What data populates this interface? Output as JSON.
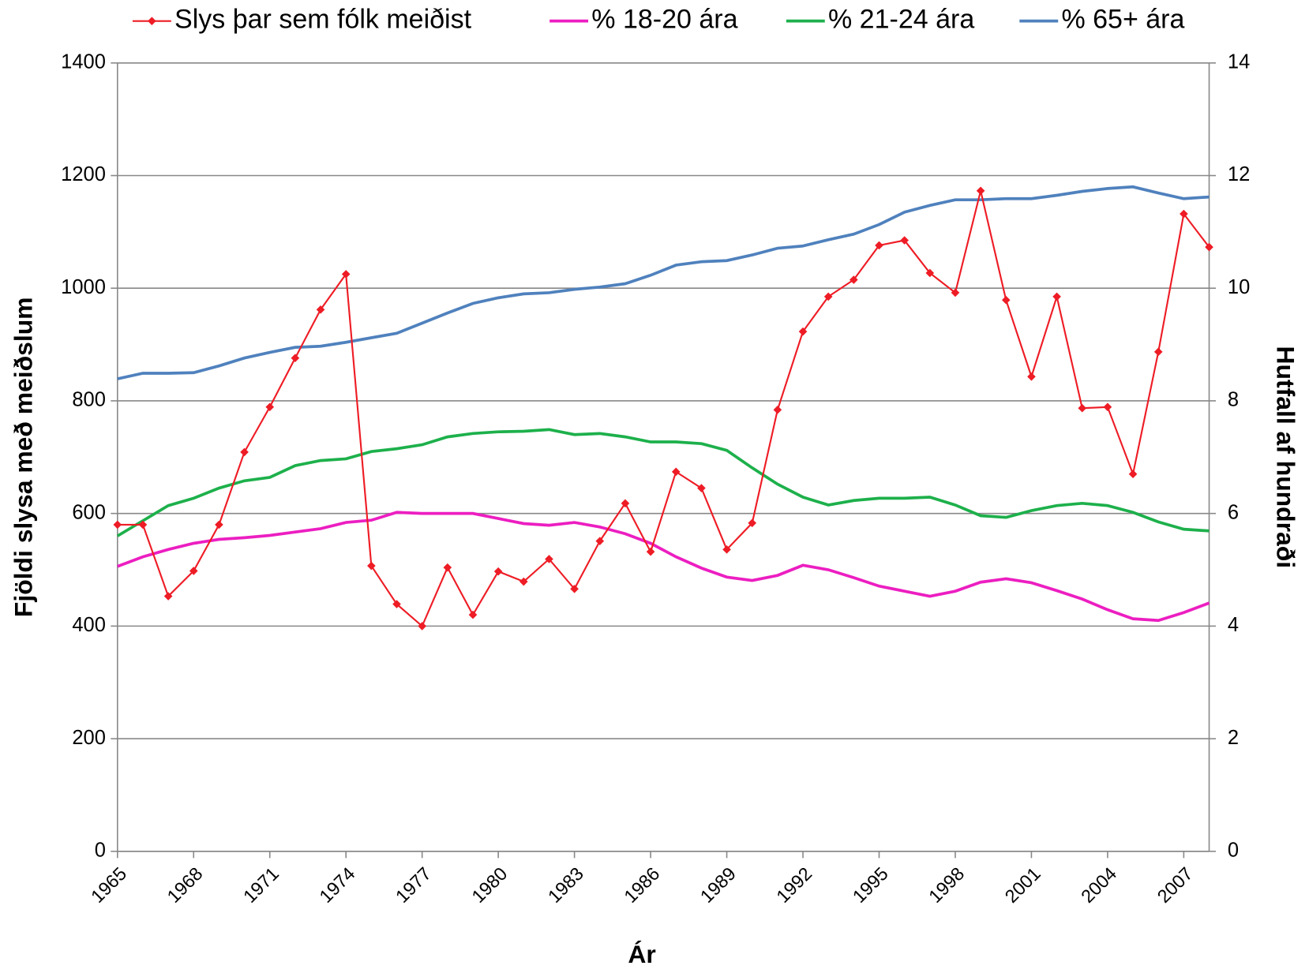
{
  "chart_data": {
    "type": "line",
    "x": [
      1965,
      1966,
      1967,
      1968,
      1969,
      1970,
      1971,
      1972,
      1973,
      1974,
      1975,
      1976,
      1977,
      1978,
      1979,
      1980,
      1981,
      1982,
      1983,
      1984,
      1985,
      1986,
      1987,
      1988,
      1989,
      1990,
      1991,
      1992,
      1993,
      1994,
      1995,
      1996,
      1997,
      1998,
      1999,
      2000,
      2001,
      2002,
      2003,
      2004,
      2005,
      2006,
      2007,
      2008
    ],
    "xlim": [
      1965,
      2008
    ],
    "xticks": [
      1965,
      1968,
      1971,
      1974,
      1977,
      1980,
      1983,
      1986,
      1989,
      1992,
      1995,
      1998,
      2001,
      2004,
      2007
    ],
    "ylim": [
      0,
      1400
    ],
    "yticks": [
      0,
      200,
      400,
      600,
      800,
      1000,
      1200,
      1400
    ],
    "y2lim": [
      0,
      14
    ],
    "y2ticks": [
      0,
      2,
      4,
      6,
      8,
      10,
      12,
      14
    ],
    "xlabel": "Ár",
    "ylabel": "Fjöldi slysa með meiðslum",
    "y2label": "Hutfall af hundraði",
    "grid": true,
    "legend": "top",
    "series": [
      {
        "name": "Slys þar sem fólk meiðist",
        "color": "#ee1c25",
        "marker": "diamond",
        "axis": "y",
        "values": [
          580,
          580,
          453,
          498,
          580,
          709,
          789,
          876,
          962,
          1025,
          507,
          439,
          400,
          504,
          420,
          497,
          479,
          519,
          466,
          551,
          618,
          532,
          674,
          645,
          536,
          583,
          784,
          923,
          985,
          1015,
          1076,
          1085,
          1027,
          992,
          1173,
          979,
          843,
          985,
          787,
          789,
          670,
          887,
          1132,
          1073
        ]
      },
      {
        "name": "% 18-20 ára",
        "color": "#ec1ec1",
        "axis": "y2",
        "values": [
          5.06,
          5.23,
          5.36,
          5.47,
          5.54,
          5.57,
          5.61,
          5.67,
          5.73,
          5.84,
          5.88,
          6.02,
          6.0,
          6.0,
          6.0,
          5.91,
          5.82,
          5.79,
          5.84,
          5.76,
          5.64,
          5.47,
          5.23,
          5.03,
          4.87,
          4.81,
          4.9,
          5.08,
          5.0,
          4.86,
          4.71,
          4.62,
          4.53,
          4.62,
          4.78,
          4.84,
          4.77,
          4.63,
          4.48,
          4.29,
          4.13,
          4.1,
          4.24,
          4.41
        ]
      },
      {
        "name": "% 21-24 ára",
        "color": "#1db04b",
        "axis": "y2",
        "values": [
          5.6,
          5.87,
          6.14,
          6.27,
          6.45,
          6.58,
          6.64,
          6.85,
          6.94,
          6.97,
          7.1,
          7.15,
          7.22,
          7.36,
          7.42,
          7.45,
          7.46,
          7.49,
          7.4,
          7.42,
          7.36,
          7.27,
          7.27,
          7.24,
          7.12,
          6.81,
          6.52,
          6.29,
          6.15,
          6.23,
          6.27,
          6.27,
          6.29,
          6.15,
          5.96,
          5.93,
          6.05,
          6.14,
          6.18,
          6.14,
          6.02,
          5.85,
          5.72,
          5.69
        ]
      },
      {
        "name": "% 65+ ára",
        "color": "#4f81bd",
        "axis": "y2",
        "values": [
          8.39,
          8.49,
          8.49,
          8.5,
          8.62,
          8.76,
          8.86,
          8.95,
          8.97,
          9.04,
          9.12,
          9.2,
          9.38,
          9.56,
          9.73,
          9.83,
          9.9,
          9.92,
          9.98,
          10.02,
          10.08,
          10.23,
          10.41,
          10.47,
          10.49,
          10.59,
          10.71,
          10.75,
          10.86,
          10.96,
          11.13,
          11.35,
          11.47,
          11.57,
          11.57,
          11.59,
          11.59,
          11.65,
          11.72,
          11.77,
          11.8,
          11.69,
          11.59,
          11.62
        ]
      }
    ]
  }
}
